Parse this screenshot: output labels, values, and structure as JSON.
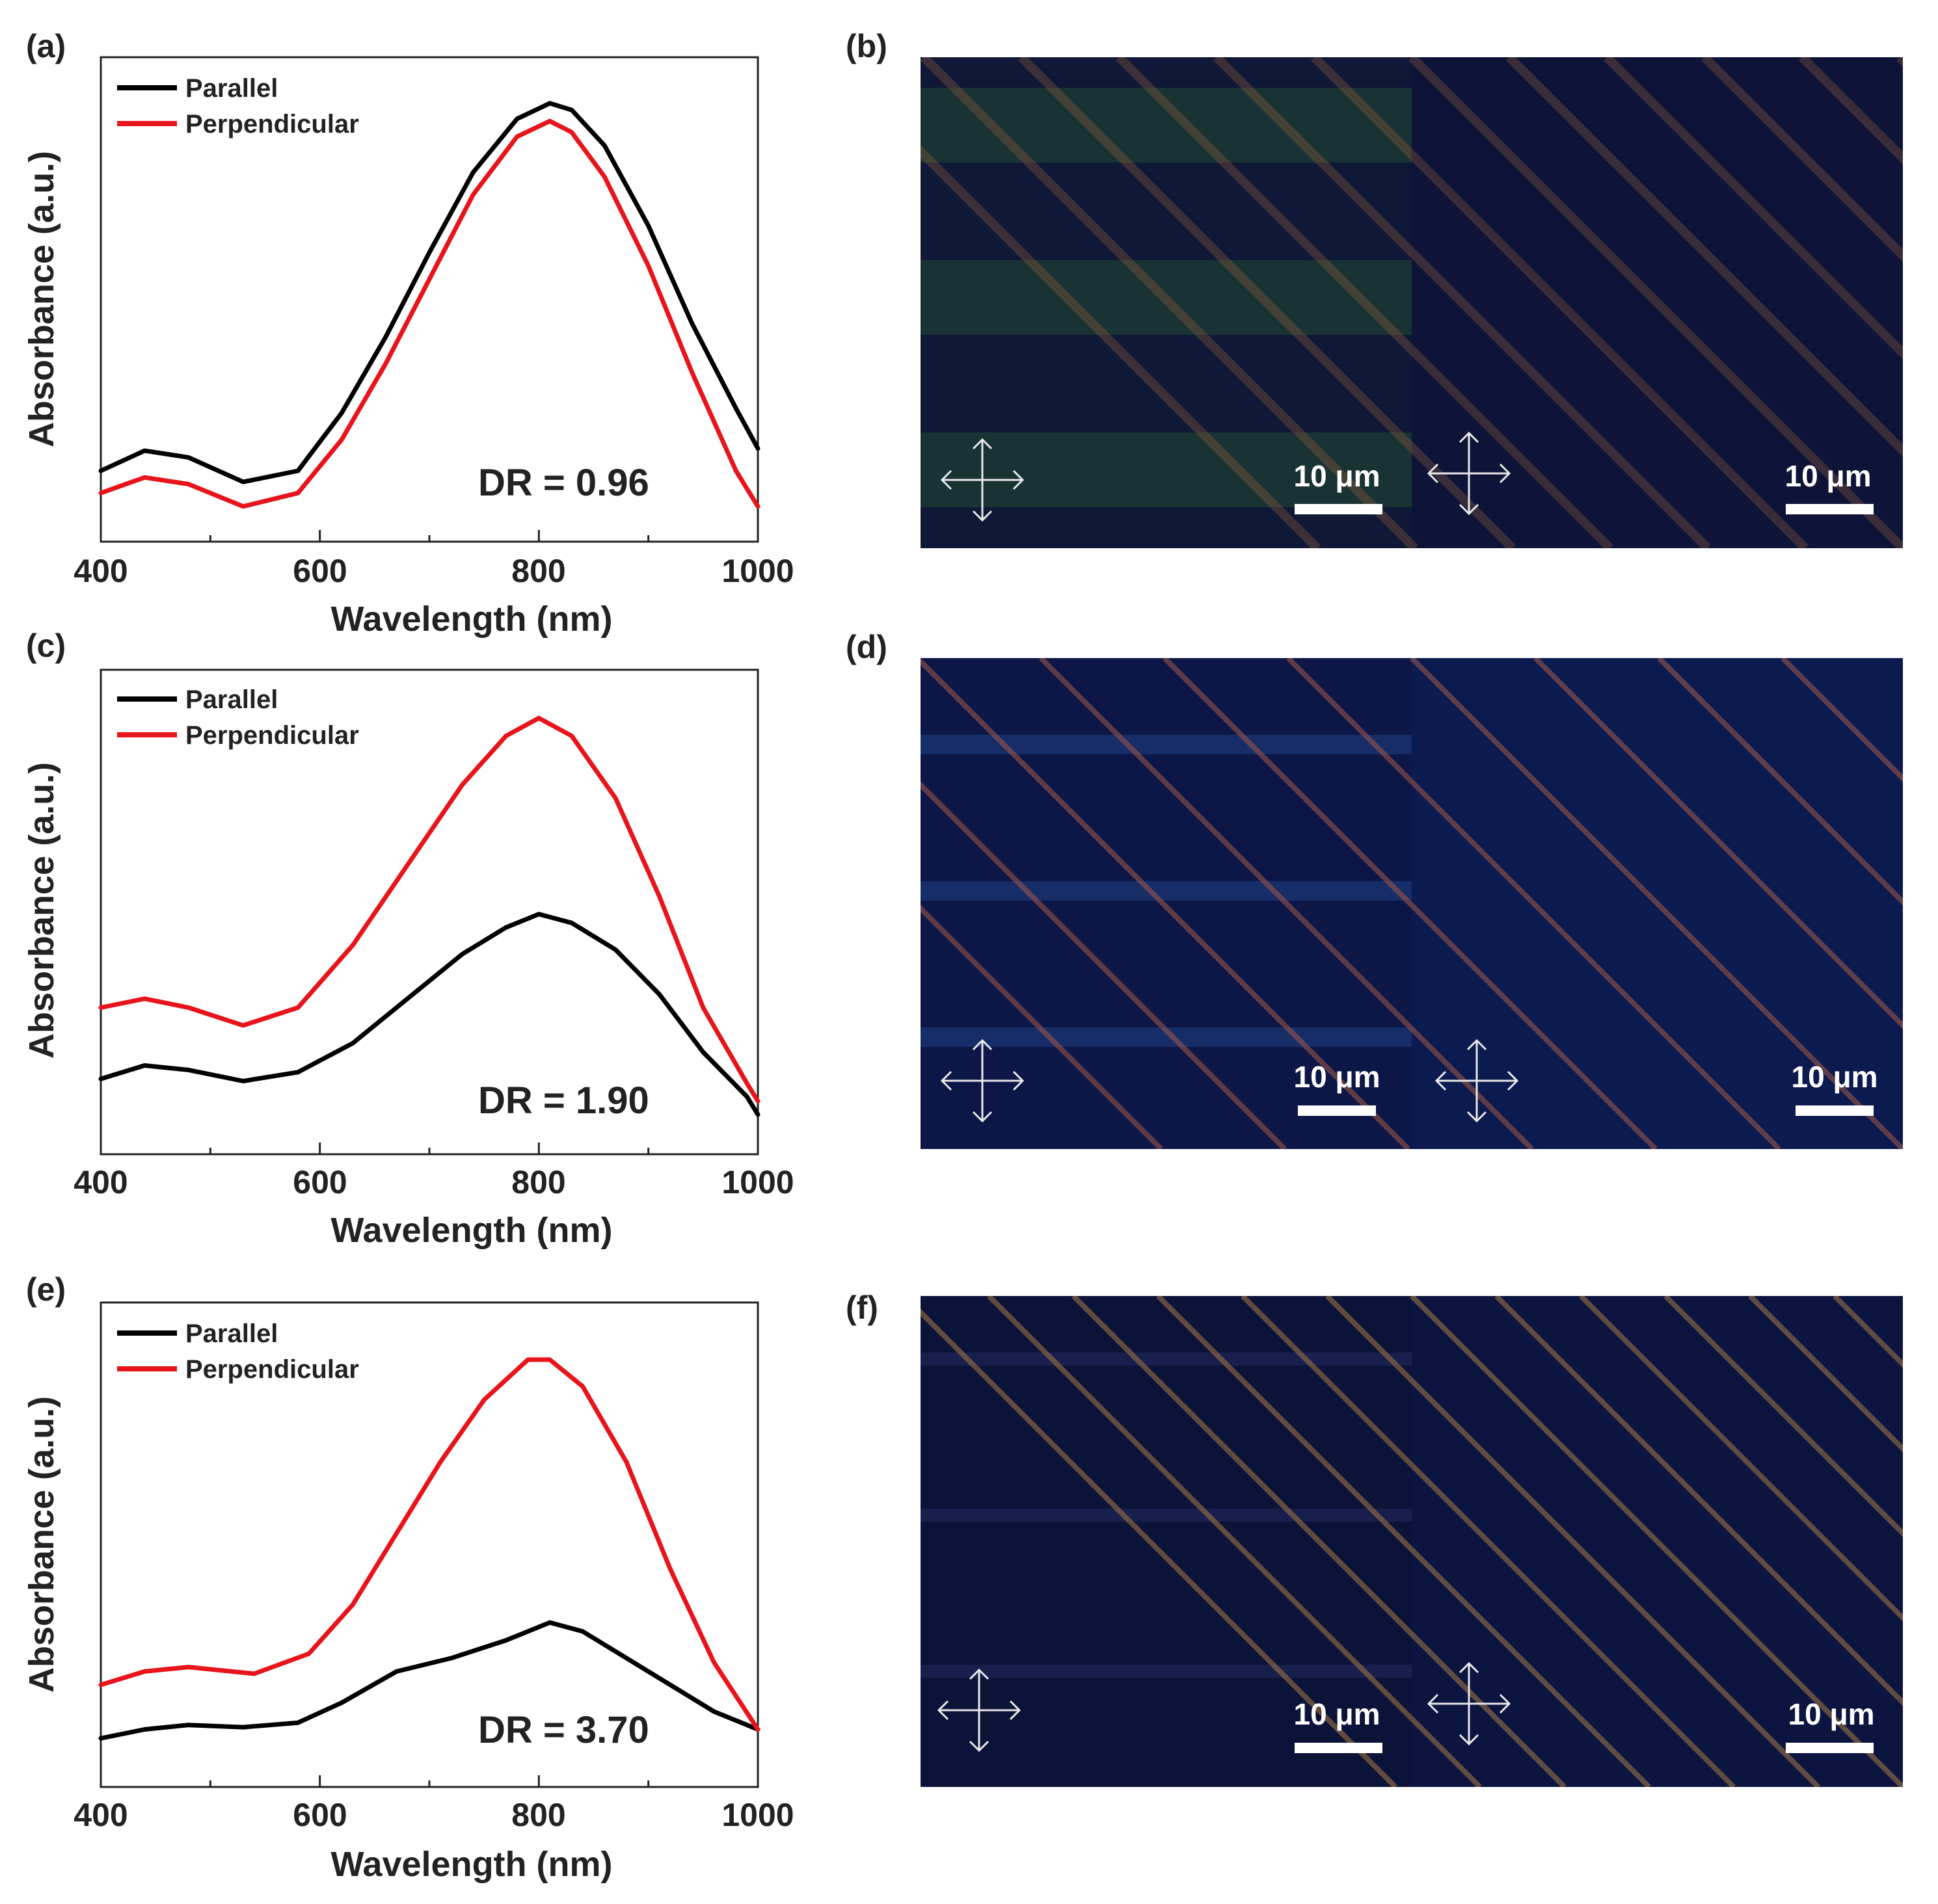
{
  "chart_data": [
    {
      "type": "line",
      "panel": "(a)",
      "xlabel": "Wavelength (nm)",
      "ylabel": "Absorbance (a.u.)",
      "xlim": [
        400,
        1000
      ],
      "ylim": [
        0,
        1
      ],
      "xticks": [
        "400",
        "600",
        "800",
        "1000"
      ],
      "annotation": "DR = 0.96",
      "series": [
        {
          "name": "Parallel",
          "color": "#000000",
          "x": [
            400,
            440,
            480,
            530,
            580,
            620,
            660,
            700,
            740,
            780,
            810,
            830,
            860,
            900,
            940,
            980,
            1000
          ],
          "y": [
            0.13,
            0.175,
            0.16,
            0.105,
            0.13,
            0.26,
            0.43,
            0.62,
            0.8,
            0.92,
            0.955,
            0.94,
            0.86,
            0.68,
            0.46,
            0.27,
            0.18
          ]
        },
        {
          "name": "Perpendicular",
          "color": "#e8141b",
          "x": [
            400,
            440,
            480,
            530,
            580,
            620,
            660,
            700,
            740,
            780,
            810,
            830,
            860,
            900,
            940,
            980,
            1000
          ],
          "y": [
            0.08,
            0.115,
            0.1,
            0.05,
            0.08,
            0.2,
            0.37,
            0.56,
            0.75,
            0.88,
            0.915,
            0.89,
            0.79,
            0.59,
            0.35,
            0.13,
            0.05
          ]
        }
      ]
    },
    {
      "type": "line",
      "panel": "(c)",
      "xlabel": "Wavelength (nm)",
      "ylabel": "Absorbance (a.u.)",
      "xlim": [
        400,
        1000
      ],
      "ylim": [
        0,
        1
      ],
      "xticks": [
        "400",
        "600",
        "800",
        "1000"
      ],
      "annotation": "DR = 1.90",
      "series": [
        {
          "name": "Parallel",
          "color": "#000000",
          "x": [
            400,
            440,
            480,
            530,
            580,
            630,
            680,
            730,
            770,
            800,
            830,
            870,
            910,
            950,
            990,
            1000
          ],
          "y": [
            0.14,
            0.17,
            0.16,
            0.135,
            0.155,
            0.22,
            0.32,
            0.42,
            0.48,
            0.51,
            0.49,
            0.43,
            0.33,
            0.2,
            0.1,
            0.06
          ]
        },
        {
          "name": "Perpendicular",
          "color": "#e8141b",
          "x": [
            400,
            440,
            480,
            530,
            580,
            630,
            680,
            730,
            770,
            800,
            830,
            870,
            910,
            950,
            990,
            1000
          ],
          "y": [
            0.3,
            0.32,
            0.3,
            0.26,
            0.3,
            0.44,
            0.62,
            0.8,
            0.91,
            0.95,
            0.91,
            0.77,
            0.55,
            0.3,
            0.13,
            0.09
          ]
        }
      ]
    },
    {
      "type": "line",
      "panel": "(e)",
      "xlabel": "Wavelength (nm)",
      "ylabel": "Absorbance (a.u.)",
      "xlim": [
        400,
        1000
      ],
      "ylim": [
        0,
        1
      ],
      "xticks": [
        "400",
        "600",
        "800",
        "1000"
      ],
      "annotation": "DR = 3.70",
      "series": [
        {
          "name": "Parallel",
          "color": "#000000",
          "x": [
            400,
            440,
            480,
            530,
            580,
            620,
            670,
            720,
            770,
            810,
            840,
            880,
            920,
            960,
            1000
          ],
          "y": [
            0.08,
            0.1,
            0.11,
            0.105,
            0.115,
            0.16,
            0.23,
            0.26,
            0.3,
            0.34,
            0.32,
            0.26,
            0.2,
            0.14,
            0.1
          ]
        },
        {
          "name": "Perpendicular",
          "color": "#e8141b",
          "x": [
            400,
            440,
            480,
            540,
            590,
            630,
            670,
            710,
            750,
            790,
            810,
            840,
            880,
            920,
            960,
            1000
          ],
          "y": [
            0.2,
            0.23,
            0.24,
            0.225,
            0.27,
            0.38,
            0.54,
            0.7,
            0.84,
            0.93,
            0.93,
            0.87,
            0.7,
            0.46,
            0.25,
            0.1
          ]
        }
      ]
    }
  ],
  "micrographs": [
    {
      "panel": "(b)",
      "left_scale": "10 μm",
      "right_scale": "10 μm",
      "stripe_color": "#b06a3e",
      "stripe_opacity": 0.28
    },
    {
      "panel": "(d)",
      "left_scale": "10 μm",
      "right_scale": "10 μm",
      "stripe_color": "#a55a47",
      "stripe_opacity": 0.55
    },
    {
      "panel": "(f)",
      "left_scale": "10 μm",
      "right_scale": "10 μm",
      "stripe_color": "#a87a42",
      "stripe_opacity": 0.55
    }
  ]
}
